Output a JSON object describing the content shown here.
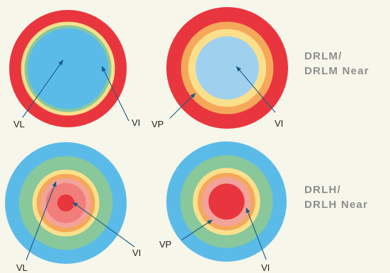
{
  "colors": {
    "background": "#f6f6ea",
    "red": "#e9363e",
    "orange": "#f6a85a",
    "yellow": "#fbe08c",
    "green": "#88c89a",
    "blue": "#5bbbe8",
    "light_blue": "#9fd1ef",
    "salmon": "#f17e7b",
    "pink": "#f2a39a",
    "leader": "#1b5a86",
    "side_label": "#8e8e8e"
  },
  "rows": [
    {
      "id": "drlm",
      "side_label_lines": [
        "DRLM/",
        "DRLM Near"
      ],
      "discs": [
        {
          "name": "disc-drlm",
          "rings": [
            {
              "color": "red",
              "fraction": 1.0
            },
            {
              "color": "yellow",
              "fraction": 0.8
            },
            {
              "color": "green",
              "fraction": 0.74
            },
            {
              "color": "blue",
              "fraction": 0.69
            }
          ],
          "labels": [
            "VL",
            "VI"
          ]
        },
        {
          "name": "disc-drlm-near",
          "rings": [
            {
              "color": "red",
              "fraction": 1.0
            },
            {
              "color": "orange",
              "fraction": 0.76
            },
            {
              "color": "yellow",
              "fraction": 0.64
            },
            {
              "color": "light_blue",
              "fraction": 0.52
            }
          ],
          "labels": [
            "VP",
            "VI"
          ]
        }
      ]
    },
    {
      "id": "drlh",
      "side_label_lines": [
        "DRLH/",
        "DRLH Near"
      ],
      "discs": [
        {
          "name": "disc-drlh",
          "rings": [
            {
              "color": "blue",
              "fraction": 1.0
            },
            {
              "color": "green",
              "fraction": 0.77
            },
            {
              "color": "yellow",
              "fraction": 0.55
            },
            {
              "color": "orange",
              "fraction": 0.48
            },
            {
              "color": "pink",
              "fraction": 0.41
            },
            {
              "color": "salmon",
              "fraction": 0.33
            },
            {
              "color": "red",
              "fraction": 0.14
            }
          ],
          "labels": [
            "VL",
            "VI"
          ]
        },
        {
          "name": "disc-drlh-near",
          "rings": [
            {
              "color": "blue",
              "fraction": 1.0
            },
            {
              "color": "green",
              "fraction": 0.77
            },
            {
              "color": "yellow",
              "fraction": 0.56
            },
            {
              "color": "orange",
              "fraction": 0.48
            },
            {
              "color": "pink",
              "fraction": 0.41
            },
            {
              "color": "red",
              "fraction": 0.3
            }
          ],
          "labels": [
            "VP",
            "VI"
          ]
        }
      ]
    }
  ]
}
